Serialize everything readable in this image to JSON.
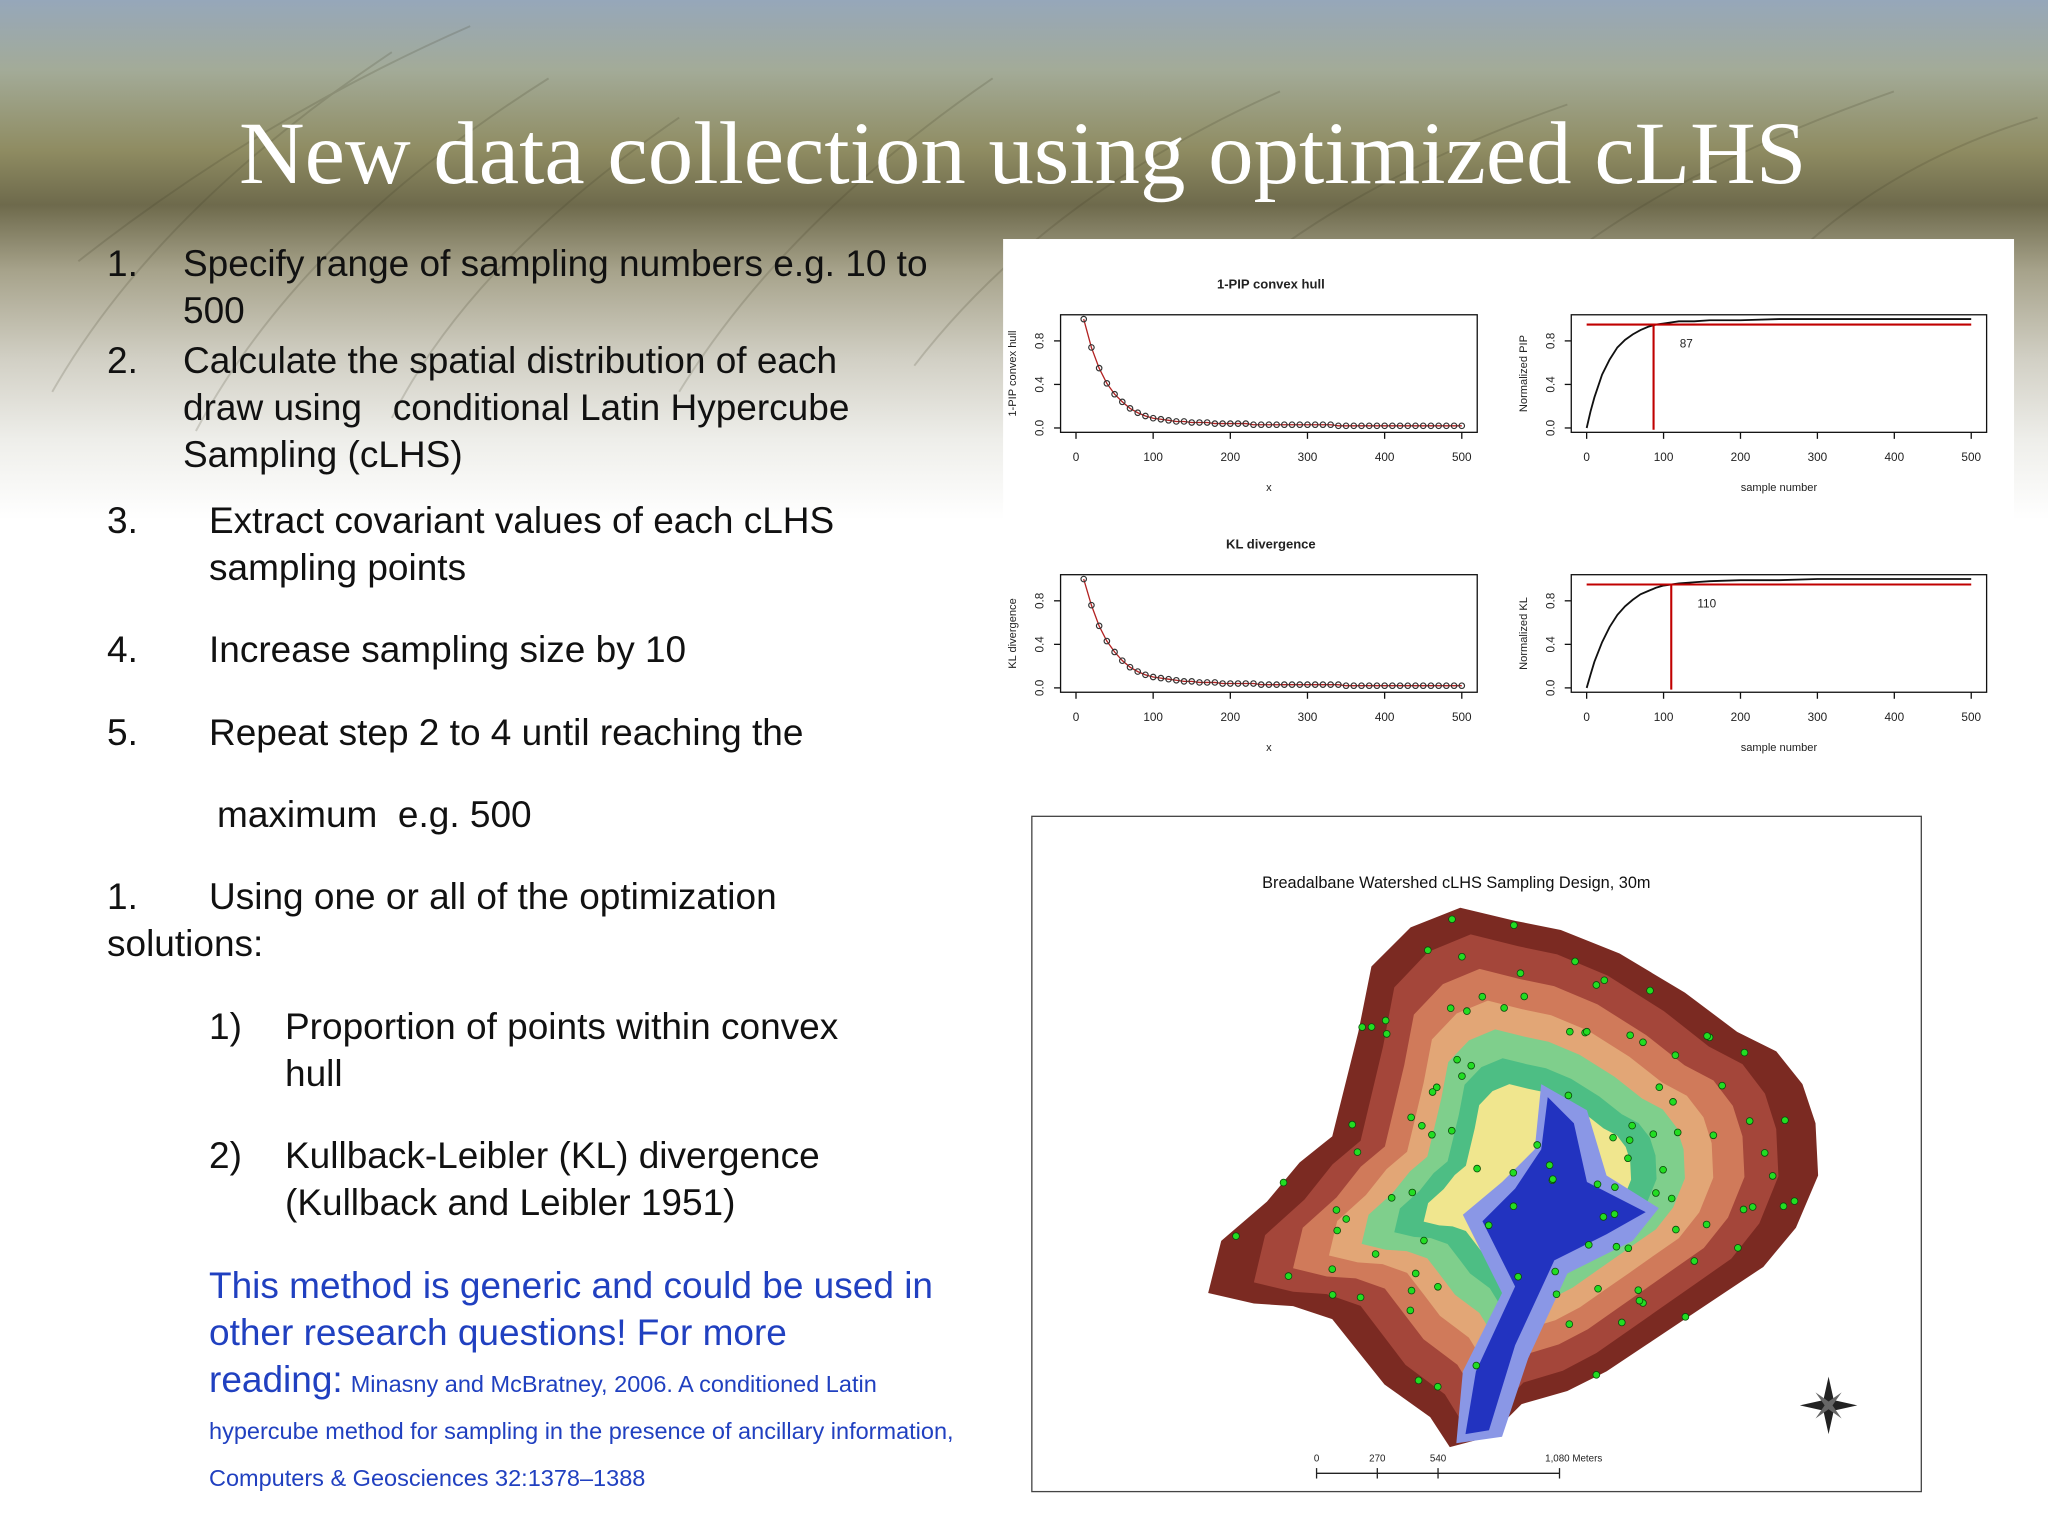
{
  "header": {
    "title": "New data collection using optimized cLHS"
  },
  "steps": [
    {
      "number": "1.",
      "text": "Specify range of sampling numbers e.g. 10 to 500"
    },
    {
      "number": "2.",
      "text": "Calculate the spatial distribution of each draw using   conditional Latin Hypercube Sampling (cLHS)"
    },
    {
      "number": "3.",
      "text": "Extract covariant values of each cLHS sampling points"
    },
    {
      "number": "4.",
      "text": "Increase sampling size by 10"
    },
    {
      "number": "5.",
      "text": "Repeat step 2 to 4 until reaching the",
      "continuation": "maximum  e.g. 500"
    }
  ],
  "optimization": {
    "number": "1.",
    "text": "Using one or all of the optimization solutions:",
    "options": [
      {
        "number": "1)",
        "text": "Proportion of points within convex hull"
      },
      {
        "number": "2)",
        "text": "Kullback-Leibler (KL) divergence (Kullback and Leibler 1951)"
      }
    ]
  },
  "note": {
    "text": "This method is generic and could be used in other research questions! For more reading:",
    "reference": "Minasny and McBratney, 2006. A conditioned Latin hypercube method for sampling in the presence of ancillary information, Computers & Geosciences 32:1378–1388"
  },
  "plot_rows": [
    {
      "title": "1-PIP convex hull",
      "left": {
        "type": "scatter",
        "ylabel": "1-PIP convex hull",
        "xlabel": "x",
        "xlim": [
          -20,
          520
        ],
        "ylim": [
          -0.04,
          1.04
        ],
        "xticks": [
          0,
          100,
          200,
          300,
          400,
          500
        ],
        "yticks": [
          {
            "value": 0,
            "label": "0.0"
          },
          {
            "value": 0.4,
            "label": "0.4"
          },
          {
            "value": 0.8,
            "label": "0.8"
          }
        ],
        "x": [
          10,
          20,
          30,
          40,
          50,
          60,
          70,
          80,
          90,
          100,
          110,
          120,
          130,
          140,
          150,
          160,
          170,
          180,
          190,
          200,
          210,
          220,
          230,
          240,
          250,
          260,
          270,
          280,
          290,
          300,
          310,
          320,
          330,
          340,
          350,
          360,
          370,
          380,
          390,
          400,
          410,
          420,
          430,
          440,
          450,
          460,
          470,
          480,
          490,
          500
        ],
        "values": [
          1.0,
          0.74,
          0.55,
          0.41,
          0.31,
          0.24,
          0.18,
          0.14,
          0.11,
          0.09,
          0.08,
          0.07,
          0.06,
          0.06,
          0.05,
          0.05,
          0.05,
          0.04,
          0.04,
          0.04,
          0.04,
          0.04,
          0.03,
          0.03,
          0.03,
          0.03,
          0.03,
          0.03,
          0.03,
          0.03,
          0.03,
          0.03,
          0.03,
          0.02,
          0.02,
          0.02,
          0.02,
          0.02,
          0.02,
          0.02,
          0.02,
          0.02,
          0.02,
          0.02,
          0.02,
          0.02,
          0.02,
          0.02,
          0.02,
          0.02
        ]
      },
      "right": {
        "type": "line",
        "ylabel": "Normalized PIP",
        "xlabel": "sample number",
        "xlim": [
          -20,
          520
        ],
        "ylim": [
          -0.04,
          1.04
        ],
        "xticks": [
          0,
          100,
          200,
          300,
          400,
          500
        ],
        "yticks": [
          {
            "value": 0,
            "label": "0.0"
          },
          {
            "value": 0.4,
            "label": "0.4"
          },
          {
            "value": 0.8,
            "label": "0.8"
          }
        ],
        "x": [
          0,
          5,
          10,
          20,
          30,
          40,
          50,
          60,
          70,
          80,
          90,
          100,
          120,
          140,
          160,
          200,
          250,
          300,
          350,
          400,
          450,
          500
        ],
        "values": [
          0,
          0.15,
          0.28,
          0.49,
          0.63,
          0.74,
          0.81,
          0.86,
          0.9,
          0.93,
          0.95,
          0.96,
          0.98,
          0.98,
          0.99,
          0.99,
          1.0,
          1.0,
          1.0,
          1.0,
          1.0,
          1.0
        ],
        "threshold": 0.95,
        "optimum": 87
      }
    },
    {
      "title": "KL divergence",
      "left": {
        "type": "scatter",
        "ylabel": "KL divergence",
        "xlabel": "x",
        "xlim": [
          -20,
          520
        ],
        "ylim": [
          -0.04,
          1.04
        ],
        "xticks": [
          0,
          100,
          200,
          300,
          400,
          500
        ],
        "yticks": [
          {
            "value": 0,
            "label": "0.0"
          },
          {
            "value": 0.4,
            "label": "0.4"
          },
          {
            "value": 0.8,
            "label": "0.8"
          }
        ],
        "x": [
          10,
          20,
          30,
          40,
          50,
          60,
          70,
          80,
          90,
          100,
          110,
          120,
          130,
          140,
          150,
          160,
          170,
          180,
          190,
          200,
          210,
          220,
          230,
          240,
          250,
          260,
          270,
          280,
          290,
          300,
          310,
          320,
          330,
          340,
          350,
          360,
          370,
          380,
          390,
          400,
          410,
          420,
          430,
          440,
          450,
          460,
          470,
          480,
          490,
          500
        ],
        "values": [
          1.0,
          0.76,
          0.57,
          0.43,
          0.33,
          0.25,
          0.19,
          0.15,
          0.12,
          0.1,
          0.09,
          0.08,
          0.07,
          0.06,
          0.06,
          0.05,
          0.05,
          0.05,
          0.04,
          0.04,
          0.04,
          0.04,
          0.04,
          0.03,
          0.03,
          0.03,
          0.03,
          0.03,
          0.03,
          0.03,
          0.03,
          0.03,
          0.03,
          0.03,
          0.02,
          0.02,
          0.02,
          0.02,
          0.02,
          0.02,
          0.02,
          0.02,
          0.02,
          0.02,
          0.02,
          0.02,
          0.02,
          0.02,
          0.02,
          0.02
        ]
      },
      "right": {
        "type": "line",
        "ylabel": "Normalized KL",
        "xlabel": "sample number",
        "xlim": [
          -20,
          520
        ],
        "ylim": [
          -0.04,
          1.04
        ],
        "xticks": [
          0,
          100,
          200,
          300,
          400,
          500
        ],
        "yticks": [
          {
            "value": 0,
            "label": "0.0"
          },
          {
            "value": 0.4,
            "label": "0.4"
          },
          {
            "value": 0.8,
            "label": "0.8"
          }
        ],
        "x": [
          0,
          5,
          10,
          20,
          30,
          40,
          50,
          60,
          70,
          80,
          90,
          100,
          120,
          140,
          160,
          200,
          250,
          300,
          350,
          400,
          450,
          500
        ],
        "values": [
          0,
          0.12,
          0.24,
          0.42,
          0.56,
          0.67,
          0.75,
          0.81,
          0.86,
          0.89,
          0.92,
          0.94,
          0.96,
          0.97,
          0.98,
          0.99,
          0.99,
          1.0,
          1.0,
          1.0,
          1.0,
          1.0
        ],
        "threshold": 0.95,
        "optimum": 110
      }
    }
  ],
  "map": {
    "title": "Breadalbane Watershed cLHS Sampling Design, 30m",
    "scale_ticks": [
      0,
      270,
      540,
      {
        "value": 1080,
        "label": "1,080 Meters"
      }
    ],
    "scale_max": 1080
  }
}
